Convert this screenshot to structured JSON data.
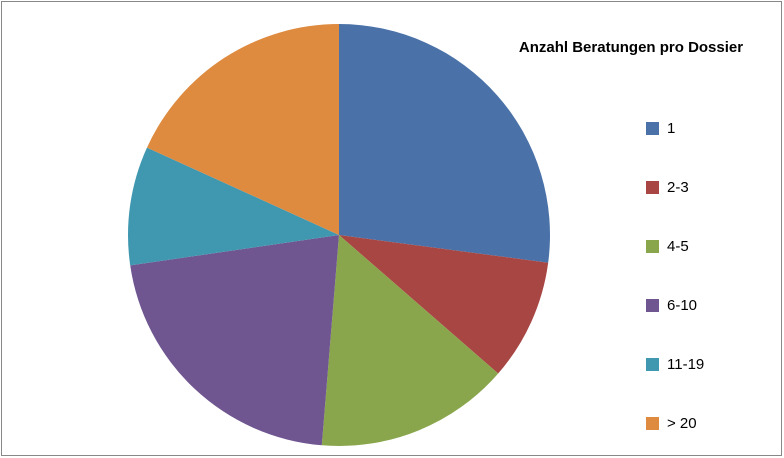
{
  "chart_data": {
    "type": "pie",
    "title": "Anzahl Beratungen pro Dossier",
    "categories": [
      "1",
      "2-3",
      "4-5",
      "6-10",
      "11-19",
      "> 20"
    ],
    "values": [
      27.1,
      9.3,
      14.9,
      21.4,
      9.1,
      18.2
    ],
    "colors": [
      "#4a72a8",
      "#a84644",
      "#8aa64c",
      "#6f5690",
      "#4098b0",
      "#de8a3f"
    ],
    "legend": "right"
  }
}
